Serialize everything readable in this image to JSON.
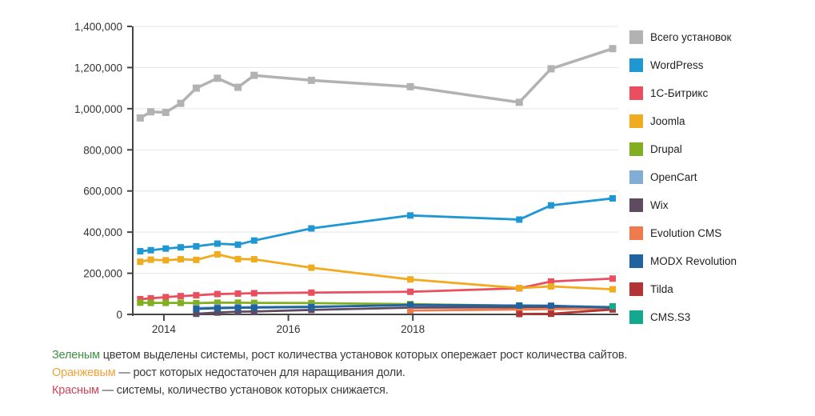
{
  "chart_data": {
    "type": "line",
    "title": "",
    "xlabel": "",
    "ylabel": "",
    "xlim": [
      2013.5,
      2021.3
    ],
    "ylim": [
      0,
      1400000
    ],
    "grid": "horizontal",
    "legend_position": "right",
    "axis_color": "#454545",
    "grid_color": "#e5e5e5",
    "x": [
      2013.62,
      2013.79,
      2014.03,
      2014.27,
      2014.52,
      2014.86,
      2015.19,
      2015.45,
      2016.37,
      2017.96,
      2019.71,
      2020.22,
      2021.21
    ],
    "x_ticks": [
      {
        "value": 2014,
        "label": "2014"
      },
      {
        "value": 2016,
        "label": "2016"
      },
      {
        "value": 2018,
        "label": "2018"
      }
    ],
    "y_ticks": [
      {
        "value": 0,
        "label": "0"
      },
      {
        "value": 200000,
        "label": "200,000"
      },
      {
        "value": 400000,
        "label": "400,000"
      },
      {
        "value": 600000,
        "label": "600,000"
      },
      {
        "value": 800000,
        "label": "800,000"
      },
      {
        "value": 1000000,
        "label": "1,000,000"
      },
      {
        "value": 1200000,
        "label": "1,200,000"
      },
      {
        "value": 1400000,
        "label": "1,400,000"
      }
    ],
    "series": [
      {
        "id": "total",
        "name": "Всего установок",
        "color": "#b2b2b2",
        "values": [
          955000,
          985000,
          982000,
          1026000,
          1100000,
          1148000,
          1104000,
          1162000,
          1138000,
          1107000,
          1031000,
          1194000,
          1292000
        ]
      },
      {
        "id": "wordpress",
        "name": "WordPress",
        "color": "#1e97d3",
        "values": [
          307000,
          312000,
          320000,
          326000,
          331000,
          344000,
          339000,
          359000,
          418000,
          481000,
          461000,
          530000,
          564000
        ]
      },
      {
        "id": "bitrix",
        "name": "1С-Битрикс",
        "color": "#e94f5f",
        "values": [
          74000,
          78000,
          84000,
          89000,
          93000,
          99000,
          101000,
          103000,
          106000,
          110000,
          127000,
          160000,
          174000
        ]
      },
      {
        "id": "joomla",
        "name": "Joomla",
        "color": "#f0ab1e",
        "values": [
          256000,
          266000,
          263000,
          268000,
          265000,
          292000,
          269000,
          268000,
          227000,
          170000,
          128000,
          136000,
          122000
        ]
      },
      {
        "id": "drupal",
        "name": "Drupal",
        "color": "#82af22",
        "values": [
          57000,
          56000,
          56000,
          56000,
          55000,
          57000,
          57000,
          56000,
          55000,
          50000,
          42000,
          40000,
          37000
        ]
      },
      {
        "id": "opencart",
        "name": "OpenCart",
        "color": "#82add6",
        "values": [
          null,
          null,
          null,
          null,
          31000,
          34000,
          35000,
          36000,
          38000,
          44000,
          41000,
          40000,
          36000
        ]
      },
      {
        "id": "wix",
        "name": "Wix",
        "color": "#5e4b62",
        "values": [
          null,
          null,
          null,
          null,
          3000,
          9000,
          13000,
          14000,
          22000,
          33000,
          35000,
          36000,
          31000
        ]
      },
      {
        "id": "evolution-cms",
        "name": "Evolution CMS",
        "color": "#ef7a4d",
        "values": [
          null,
          null,
          null,
          null,
          null,
          null,
          null,
          null,
          null,
          19000,
          24000,
          26000,
          28000
        ]
      },
      {
        "id": "modx-revolution",
        "name": "MODX Revolution",
        "color": "#21639e",
        "values": [
          null,
          null,
          null,
          null,
          27000,
          30000,
          32000,
          33000,
          36000,
          46000,
          43000,
          42000,
          33000
        ]
      },
      {
        "id": "tilda",
        "name": "Tilda",
        "color": "#b33434",
        "values": [
          null,
          null,
          null,
          null,
          null,
          null,
          null,
          null,
          null,
          null,
          2000,
          3000,
          24000
        ]
      },
      {
        "id": "cms-s3",
        "name": "CMS.S3",
        "color": "#14a88e",
        "values": [
          null,
          null,
          null,
          null,
          null,
          null,
          null,
          null,
          null,
          null,
          null,
          null,
          39000
        ]
      }
    ]
  },
  "annotations": [
    {
      "lead": "Зеленым",
      "lead_color": "#3f8f44",
      "text": " цветом выделены системы, рост количества установок которых опережает рост количества сайтов."
    },
    {
      "lead": "Оранжевым",
      "lead_color": "#efa23b",
      "text": " — рост которых недостаточен для наращивания доли."
    },
    {
      "lead": "Красным",
      "lead_color": "#c7485a",
      "text": " — системы, количество установок которых снижается."
    }
  ]
}
